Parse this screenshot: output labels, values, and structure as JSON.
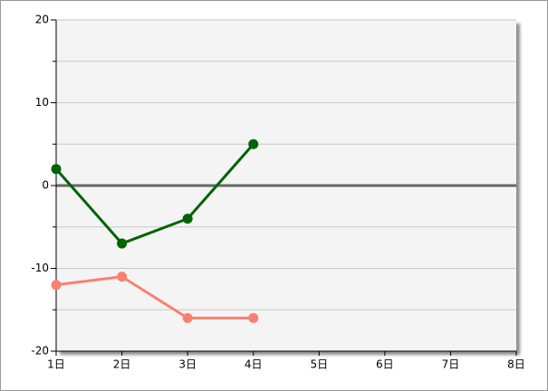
{
  "chart_data": {
    "type": "line",
    "categories": [
      "1日",
      "2日",
      "3日",
      "4日",
      "5日",
      "6日",
      "7日",
      "8日"
    ],
    "series": [
      {
        "color": "#006400",
        "values": [
          2,
          -7,
          -4,
          5,
          null,
          null,
          null,
          null
        ]
      },
      {
        "color": "#fa8072",
        "values": [
          -12,
          -11,
          -16,
          -16,
          null,
          null,
          null,
          null
        ]
      }
    ],
    "ylim": [
      -20,
      20
    ],
    "yticks": [
      -20,
      -10,
      0,
      10,
      20
    ],
    "yminorticks": [
      -15,
      -5,
      5,
      15
    ],
    "grid": true
  }
}
